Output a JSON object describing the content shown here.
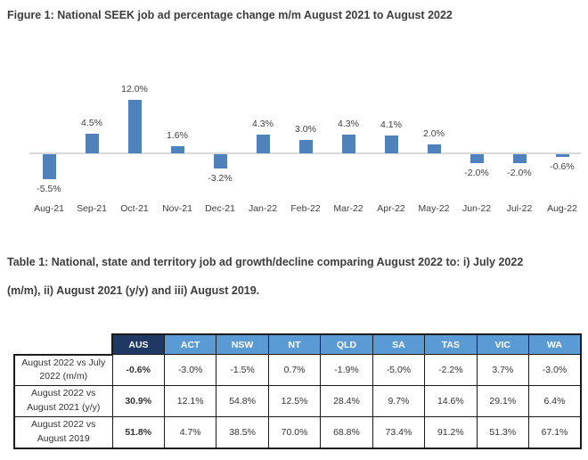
{
  "document": {
    "figure_title": "Figure 1: National SEEK job ad percentage change m/m August 2021 to August 2022",
    "table_title_lines": [
      "Table 1: National, state and territory job ad growth/decline comparing August 2022 to: i) July 2022",
      "(m/m), ii) August 2021 (y/y) and iii) August 2019."
    ]
  },
  "colors": {
    "bar_fill": "#4f81bd",
    "axis_line": "#d9d9d9",
    "header_national_bg": "#1f3864",
    "header_state_bg": "#5b9bd5",
    "header_text": "#ffffff",
    "table_border": "#1a1a1a",
    "body_text": "#3d3d3d"
  },
  "chart_data": {
    "type": "bar",
    "title": "National SEEK job ad percentage change m/m August 2021 to August 2022",
    "categories": [
      "Aug-21",
      "Sep-21",
      "Oct-21",
      "Nov-21",
      "Dec-21",
      "Jan-22",
      "Feb-22",
      "Mar-22",
      "Apr-22",
      "May-22",
      "Jun-22",
      "Jul-22",
      "Aug-22"
    ],
    "values": [
      -5.5,
      4.5,
      12.0,
      1.6,
      -3.2,
      4.3,
      3.0,
      4.3,
      4.1,
      2.0,
      -2.0,
      -2.0,
      -0.6
    ],
    "data_labels": [
      "-5.5%",
      "4.5%",
      "12.0%",
      "1.6%",
      "-3.2%",
      "4.3%",
      "3.0%",
      "4.3%",
      "4.1%",
      "2.0%",
      "-2.0%",
      "-2.0%",
      "-0.6%"
    ],
    "xlabel": "",
    "ylabel": "",
    "ylim": [
      -6.5,
      13
    ],
    "grid": false,
    "legend_position": "none",
    "bar_color": "#4f81bd"
  },
  "table": {
    "columns": [
      "AUS",
      "ACT",
      "NSW",
      "NT",
      "QLD",
      "SA",
      "TAS",
      "VIC",
      "WA"
    ],
    "rows": [
      {
        "label": "August 2022 vs July 2022 (m/m)",
        "values": [
          "-0.6%",
          "-3.0%",
          "-1.5%",
          "0.7%",
          "-1.9%",
          "-5.0%",
          "-2.2%",
          "3.7%",
          "-3.0%"
        ]
      },
      {
        "label": "August 2022 vs August 2021 (y/y)",
        "values": [
          "30.9%",
          "12.1%",
          "54.8%",
          "12.5%",
          "28.4%",
          "9.7%",
          "14.6%",
          "29.1%",
          "6.4%"
        ]
      },
      {
        "label": "August 2022 vs August 2019",
        "values": [
          "51.8%",
          "4.7%",
          "38.5%",
          "70.0%",
          "68.8%",
          "73.4%",
          "91.2%",
          "51.3%",
          "67.1%"
        ]
      }
    ]
  }
}
